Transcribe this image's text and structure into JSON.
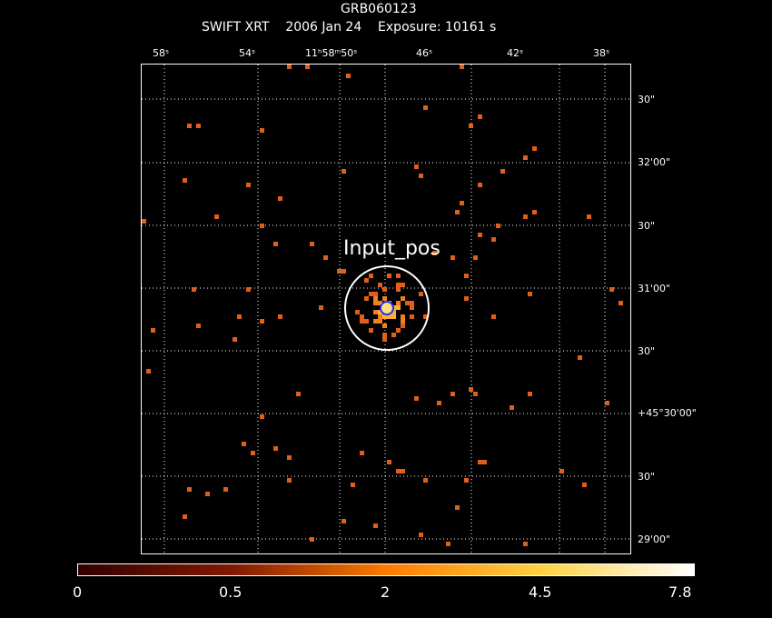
{
  "header": {
    "target": "GRB060123",
    "line2": "SWIFT XRT    2006 Jan 24    Exposure: 10161 s"
  },
  "axes": {
    "top_labels": [
      "58ˢ",
      "54ˢ",
      "11ʰ58ᵐ50ˢ",
      "46ˢ",
      "42ˢ",
      "38ˢ"
    ],
    "right_labels": [
      "30\"",
      "32'00\"",
      "30\"",
      "31'00\"",
      "30\"",
      "+45°30'00\"",
      "30\"",
      "29'00\""
    ]
  },
  "source_region": {
    "label": "Input_pos",
    "circle_color": "#ffffff",
    "marker_color": "#2030ff"
  },
  "colorbar": {
    "ticks": [
      "0",
      "0.5",
      "2",
      "4.5",
      "7.8"
    ],
    "colors": [
      "#300000",
      "#801800",
      "#ff7a00",
      "#ffd040",
      "#ffffff"
    ]
  },
  "pixel_color": "#e0601a",
  "grid_color": "#ffffff"
}
